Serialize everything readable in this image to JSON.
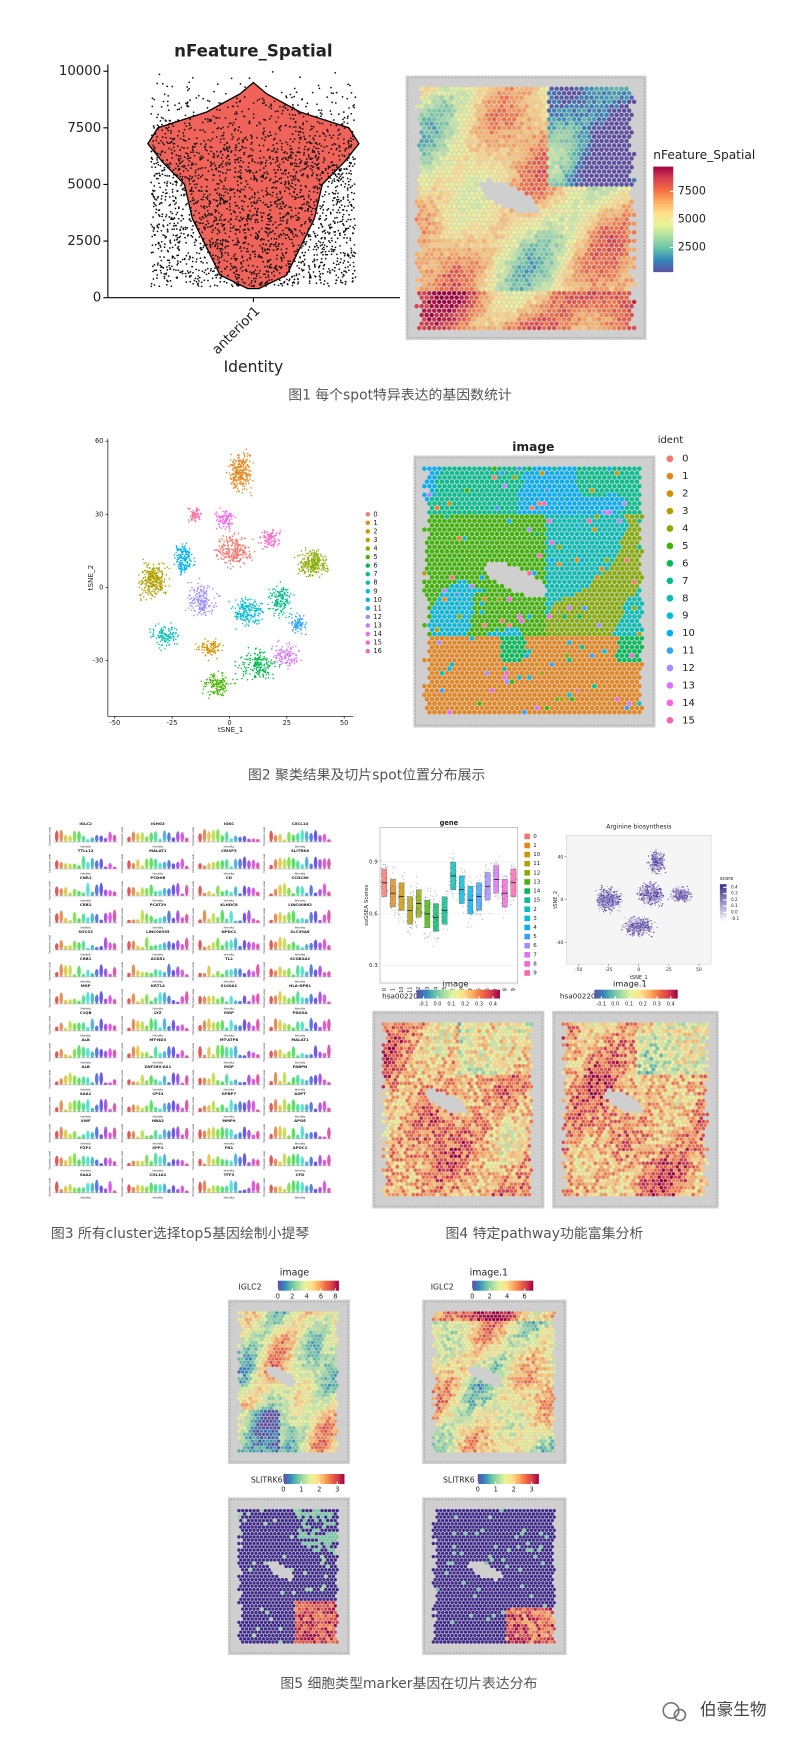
{
  "fig1": {
    "caption": "图1 每个spot特异表达的基因数统计",
    "violin": {
      "type": "violin",
      "title": "nFeature_Spatial",
      "categories": [
        "anterior1"
      ],
      "x_label": "Identity",
      "ylim": [
        0,
        10300
      ],
      "yticks": [
        0,
        2500,
        5000,
        7500,
        10000
      ],
      "color": "#f0635a"
    },
    "map": {
      "legend_title": "nFeature_Spatial",
      "clim": [
        300,
        9700
      ],
      "ticks": [
        2500,
        5000,
        7500
      ]
    }
  },
  "fig2": {
    "caption": "图2 聚类结果及切片spot位置分布展示",
    "tsne": {
      "type": "scatter",
      "x_label": "tSNE_1",
      "y_label": "tSNE_2",
      "xlim": [
        -53,
        54
      ],
      "ylim": [
        -53,
        61
      ],
      "xticks": [
        -50,
        -25,
        0,
        25,
        50
      ],
      "yticks": [
        -30,
        0,
        30,
        60
      ],
      "legend": [
        "0",
        "1",
        "2",
        "3",
        "4",
        "5",
        "6",
        "7",
        "8",
        "9",
        "10",
        "11",
        "12",
        "13",
        "14",
        "15",
        "16"
      ],
      "colors": [
        "#f8766d",
        "#e7851e",
        "#d09400",
        "#b2a100",
        "#89ac00",
        "#45b500",
        "#00bc51",
        "#00c087",
        "#00c0b2",
        "#00bcd6",
        "#00b3f2",
        "#29a3ff",
        "#9c8dff",
        "#d277ff",
        "#f166e8",
        "#ff61c7",
        "#ff689e"
      ]
    },
    "map": {
      "title": "image",
      "legend_title": "ident",
      "legend": [
        "0",
        "1",
        "2",
        "3",
        "4",
        "5",
        "6",
        "7",
        "8",
        "9",
        "10",
        "11",
        "12",
        "13",
        "14",
        "15"
      ],
      "colors": [
        "#f8766d",
        "#e8851a",
        "#cf9400",
        "#b0a100",
        "#85ad00",
        "#3eb600",
        "#00bc56",
        "#00c08d",
        "#00c0b8",
        "#00bbdb",
        "#00b0f6",
        "#35a2ff",
        "#a58aff",
        "#dc71fa",
        "#f763e0",
        "#ff64b0"
      ]
    }
  },
  "fig3": {
    "caption": "图3 所有cluster选择top5基因绘制小提琴",
    "x_label": "Identity",
    "y_label": "Expression Level",
    "genes": [
      [
        "IGLC2",
        "IGHG3",
        "IGKC",
        "CXCL14"
      ],
      [
        "TTLL12",
        "MALAT1",
        "CRISP3",
        "SLITRK6"
      ],
      [
        "CNR1",
        "PCDH8",
        "CD",
        "CCDC80"
      ],
      [
        "CRB1",
        "PCAT29",
        "KLHDC8",
        "LINC00662"
      ],
      [
        "SOCS3",
        "LINC00955",
        "NPDC1",
        "SLC39A6"
      ],
      [
        "CRB1",
        "ACKR1",
        "TL2",
        "SCGB2A2"
      ],
      [
        "MGP",
        "KRT14",
        "S100A1",
        "HLA-DPB1"
      ],
      [
        "C1QB",
        "LYZ",
        "MGP",
        "PDGSA"
      ],
      [
        "ALB",
        "MT-ND3",
        "MT-ATP8",
        "MALAT1"
      ],
      [
        "ALB",
        "ZNF260-AS1",
        "MGP",
        "PABPN"
      ],
      [
        "SAA1",
        "CP33",
        "GPBP7",
        "AGPT"
      ],
      [
        "VWF",
        "HBA2",
        "MMP9",
        "APOE"
      ],
      [
        "PZP1",
        "SPP1",
        "FN1",
        "APOC1"
      ],
      [
        "SAA2",
        "COL1A1",
        "TFF3",
        "CFD"
      ]
    ]
  },
  "fig4": {
    "caption": "图4 特定pathway功能富集分析",
    "box": {
      "type": "box",
      "title": "gene",
      "y_label": "ssGSEA Scores",
      "ylim": [
        0.2,
        1.1
      ],
      "yticks": [
        0.3,
        0.6,
        0.9
      ],
      "categories": [
        "0",
        "1",
        "10",
        "11",
        "12",
        "13",
        "14",
        "15",
        "2",
        "3",
        "4",
        "5",
        "6",
        "7",
        "8",
        "9"
      ],
      "values": [
        0.78,
        0.72,
        0.7,
        0.62,
        0.66,
        0.6,
        0.58,
        0.62,
        0.82,
        0.74,
        0.68,
        0.7,
        0.76,
        0.8,
        0.72,
        0.78
      ],
      "colors": [
        "#f8766d",
        "#e8851a",
        "#cf9400",
        "#b0a100",
        "#85ad00",
        "#3eb600",
        "#00bc56",
        "#00c08d",
        "#00c0b8",
        "#00bbdb",
        "#00b0f6",
        "#35a2ff",
        "#a58aff",
        "#dc71fa",
        "#f763e0",
        "#ff64b0"
      ]
    },
    "tsne": {
      "type": "scatter",
      "title": "Arginine biosynthesis",
      "x_label": "tSNE_1",
      "y_label": "tSNE_2",
      "xlim": [
        -60,
        60
      ],
      "ylim": [
        -60,
        60
      ],
      "xticks": [
        -50,
        -25,
        0,
        25,
        50
      ],
      "yticks": [
        -40,
        0,
        40
      ],
      "legend_title": "score",
      "clim": [
        -0.15,
        0.45
      ],
      "ticks": [
        0.4,
        0.3,
        0.2,
        0.1,
        {
          "value": 0,
          "label": "0.0"
        },
        -0.1
      ]
    },
    "maps": [
      {
        "title": "image",
        "legend_title": "hsa00220",
        "clim": [
          -0.15,
          0.45
        ],
        "ticks": [
          -0.1,
          {
            "value": 0,
            "label": "0.0"
          },
          0.1,
          0.2,
          0.3,
          0.4
        ]
      },
      {
        "title": "image.1",
        "legend_title": "hsa00220",
        "clim": [
          -0.15,
          0.45
        ],
        "ticks": [
          -0.1,
          {
            "value": 0,
            "label": "0.0"
          },
          0.1,
          0.2,
          0.3,
          0.4
        ]
      }
    ]
  },
  "fig5": {
    "caption": "图5 细胞类型marker基因在切片表达分布",
    "maps": [
      {
        "title": "image",
        "gene": "IGLC2",
        "clim": [
          0,
          8.5
        ],
        "ticks": [
          0,
          2,
          4,
          6,
          8
        ]
      },
      {
        "title": "image.1",
        "gene": "IGLC2",
        "clim": [
          0,
          7
        ],
        "ticks": [
          0,
          2,
          4,
          6
        ]
      },
      {
        "gene": "SLITRK6",
        "clim": [
          0,
          3.4
        ],
        "ticks": [
          0,
          1,
          2,
          3
        ]
      },
      {
        "gene": "SLITRK6",
        "clim": [
          0,
          3.4
        ],
        "ticks": [
          0,
          1,
          2,
          3
        ]
      }
    ]
  },
  "watermark": "伯豪生物"
}
